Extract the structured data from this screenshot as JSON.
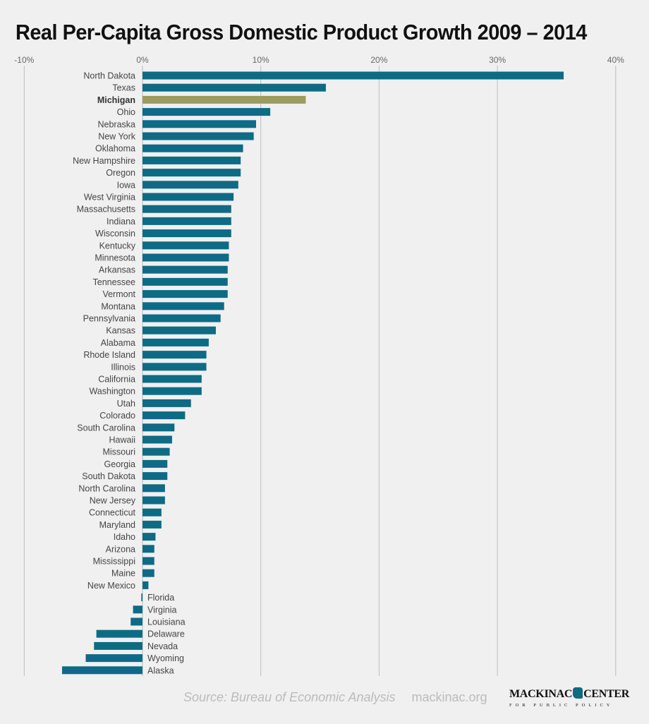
{
  "chart_data": {
    "type": "bar",
    "orientation": "horizontal",
    "title": "Real Per-Capita Gross Domestic Product Growth 2009 – 2014",
    "xlim": [
      -10,
      40
    ],
    "x_ticks": [
      "-10%",
      "0%",
      "10%",
      "20%",
      "30%",
      "40%"
    ],
    "x_tick_values": [
      -10,
      0,
      10,
      20,
      30,
      40
    ],
    "grid": true,
    "highlight": "Michigan",
    "colors": {
      "bar": "#0e6b86",
      "highlight": "#9b9c5d",
      "grid": "#bdbdbd"
    },
    "categories": [
      "North Dakota",
      "Texas",
      "Michigan",
      "Ohio",
      "Nebraska",
      "New York",
      "Oklahoma",
      "New Hampshire",
      "Oregon",
      "Iowa",
      "West Virginia",
      "Massachusetts",
      "Indiana",
      "Wisconsin",
      "Kentucky",
      "Minnesota",
      "Arkansas",
      "Tennessee",
      "Vermont",
      "Montana",
      "Pennsylvania",
      "Kansas",
      "Alabama",
      "Rhode Island",
      "Illinois",
      "California",
      "Washington",
      "Utah",
      "Colorado",
      "South Carolina",
      "Hawaii",
      "Missouri",
      "Georgia",
      "South Dakota",
      "North Carolina",
      "New Jersey",
      "Connecticut",
      "Maryland",
      "Idaho",
      "Arizona",
      "Mississippi",
      "Maine",
      "New Mexico",
      "Florida",
      "Virginia",
      "Louisiana",
      "Delaware",
      "Nevada",
      "Wyoming",
      "Alaska"
    ],
    "values": [
      35.6,
      15.5,
      13.8,
      10.8,
      9.6,
      9.4,
      8.5,
      8.3,
      8.3,
      8.1,
      7.7,
      7.5,
      7.5,
      7.5,
      7.3,
      7.3,
      7.2,
      7.2,
      7.2,
      6.9,
      6.6,
      6.2,
      5.6,
      5.4,
      5.4,
      5.0,
      5.0,
      4.1,
      3.6,
      2.7,
      2.5,
      2.3,
      2.1,
      2.1,
      1.9,
      1.9,
      1.6,
      1.6,
      1.1,
      1.0,
      1.0,
      1.0,
      0.5,
      -0.1,
      -0.8,
      -1.0,
      -3.9,
      -4.1,
      -4.8,
      -6.8
    ]
  },
  "footer": {
    "source": "Source: Bureau of Economic Analysis",
    "site": "mackinac.org"
  },
  "logo": {
    "name_left": "MACKINAC",
    "name_right": "CENTER",
    "tagline": "FOR PUBLIC POLICY"
  }
}
